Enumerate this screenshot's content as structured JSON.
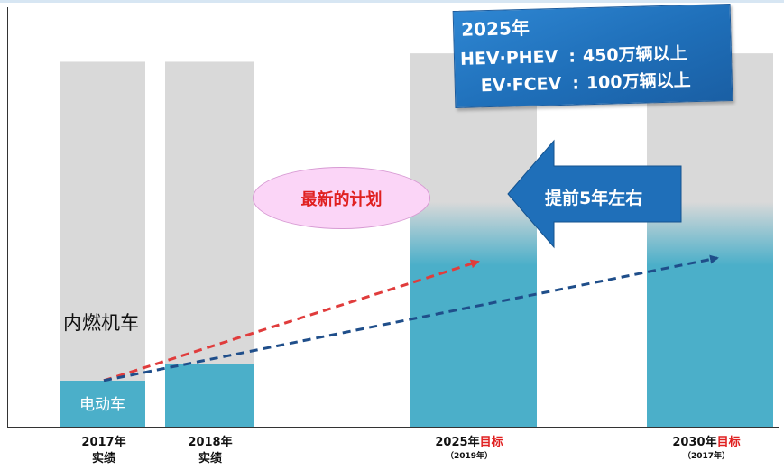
{
  "chart_data": {
    "type": "bar",
    "categories": [
      "2017年实绩",
      "2018年实绩",
      "2025年目标",
      "2030年目标"
    ],
    "x_labels": [
      {
        "year": "2017年",
        "highlight": "",
        "line2": "实绩",
        "note": ""
      },
      {
        "year": "2018年",
        "highlight": "",
        "line2": "实绩",
        "note": ""
      },
      {
        "year": "2025年",
        "highlight": "目标",
        "line2": "",
        "note": "（2019年）"
      },
      {
        "year": "2030年",
        "highlight": "目标",
        "line2": "",
        "note": "（2017年）"
      }
    ],
    "series": [
      {
        "name": "电动车",
        "values": [
          11,
          15,
          45,
          45
        ]
      },
      {
        "name": "内燃机车",
        "values": [
          76,
          72,
          44,
          44
        ]
      }
    ],
    "ylim": [
      0,
      100
    ],
    "segment_labels": {
      "ice": "内燃机车",
      "ev": "电动车"
    },
    "annotations": {
      "plan": "最新的计划",
      "arrow": "提前5年左右",
      "target_box": {
        "title": "2025年",
        "rows": [
          {
            "label": "HEV·PHEV",
            "value": "450万辆以上"
          },
          {
            "label": "EV·FCEV",
            "value": "100万辆以上"
          }
        ]
      }
    },
    "trend_lines": [
      {
        "color": "#e03c3c",
        "from": "2017年实绩",
        "to": "2025年目标"
      },
      {
        "color": "#1f4e8a",
        "from": "2017年实绩",
        "to": "2030年目标"
      }
    ]
  },
  "colors": {
    "ev": "#4bafc9",
    "ice": "#d9d9d9",
    "target_box": "#1f6fb9",
    "arrow": "#1f6fb9",
    "ellipse": "#fbd5f7",
    "highlight_red": "#e02020"
  }
}
